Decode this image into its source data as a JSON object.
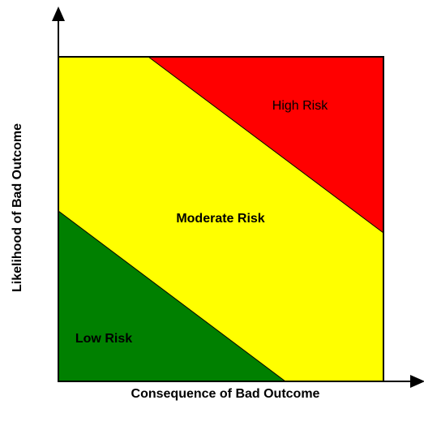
{
  "axes": {
    "x_label": "Consequence of Bad Outcome",
    "y_label": "Likelihood of Bad Outcome"
  },
  "regions": [
    {
      "label": "High Risk"
    },
    {
      "label": "Moderate Risk"
    },
    {
      "label": "Low Risk"
    }
  ]
}
